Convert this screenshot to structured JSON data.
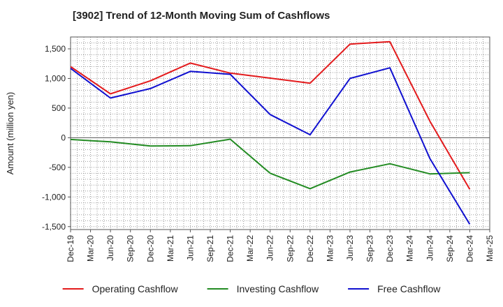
{
  "chart_data": {
    "type": "line",
    "title": "[3902]  Trend of 12-Month Moving Sum of Cashflows",
    "xlabel": "",
    "ylabel": "Amount (million yen)",
    "x": [
      "Dec-19",
      "Mar-20",
      "Jun-20",
      "Sep-20",
      "Dec-20",
      "Mar-21",
      "Jun-21",
      "Sep-21",
      "Dec-21",
      "Mar-22",
      "Jun-22",
      "Sep-22",
      "Dec-22",
      "Mar-23",
      "Jun-23",
      "Sep-23",
      "Dec-23",
      "Mar-24",
      "Jun-24",
      "Sep-24",
      "Dec-24",
      "Mar-25"
    ],
    "ylim": [
      -1550,
      1700
    ],
    "yticks": [
      -1500,
      -1000,
      -500,
      0,
      500,
      1000,
      1500
    ],
    "ytick_labels": [
      "-1,500",
      "-1,000",
      "-500",
      "0",
      "500",
      "1,000",
      "1,500"
    ],
    "grid": true,
    "legend_position": "bottom",
    "series": [
      {
        "name": "Operating Cashflow",
        "color": "#e31a1c",
        "values": [
          1200,
          null,
          740,
          null,
          960,
          null,
          1260,
          null,
          1090,
          null,
          null,
          null,
          920,
          null,
          1580,
          null,
          1620,
          null,
          280,
          null,
          -870,
          null
        ]
      },
      {
        "name": "Investing Cashflow",
        "color": "#228b22",
        "values": [
          -30,
          null,
          -70,
          null,
          -140,
          null,
          -135,
          null,
          -25,
          null,
          -600,
          null,
          -860,
          null,
          -580,
          null,
          -440,
          null,
          -610,
          null,
          -590,
          null
        ]
      },
      {
        "name": "Free Cashflow",
        "color": "#1010d0",
        "values": [
          1170,
          null,
          670,
          null,
          830,
          null,
          1120,
          null,
          1070,
          null,
          390,
          null,
          50,
          null,
          1000,
          null,
          1180,
          null,
          -350,
          null,
          -1460,
          null
        ]
      }
    ]
  }
}
